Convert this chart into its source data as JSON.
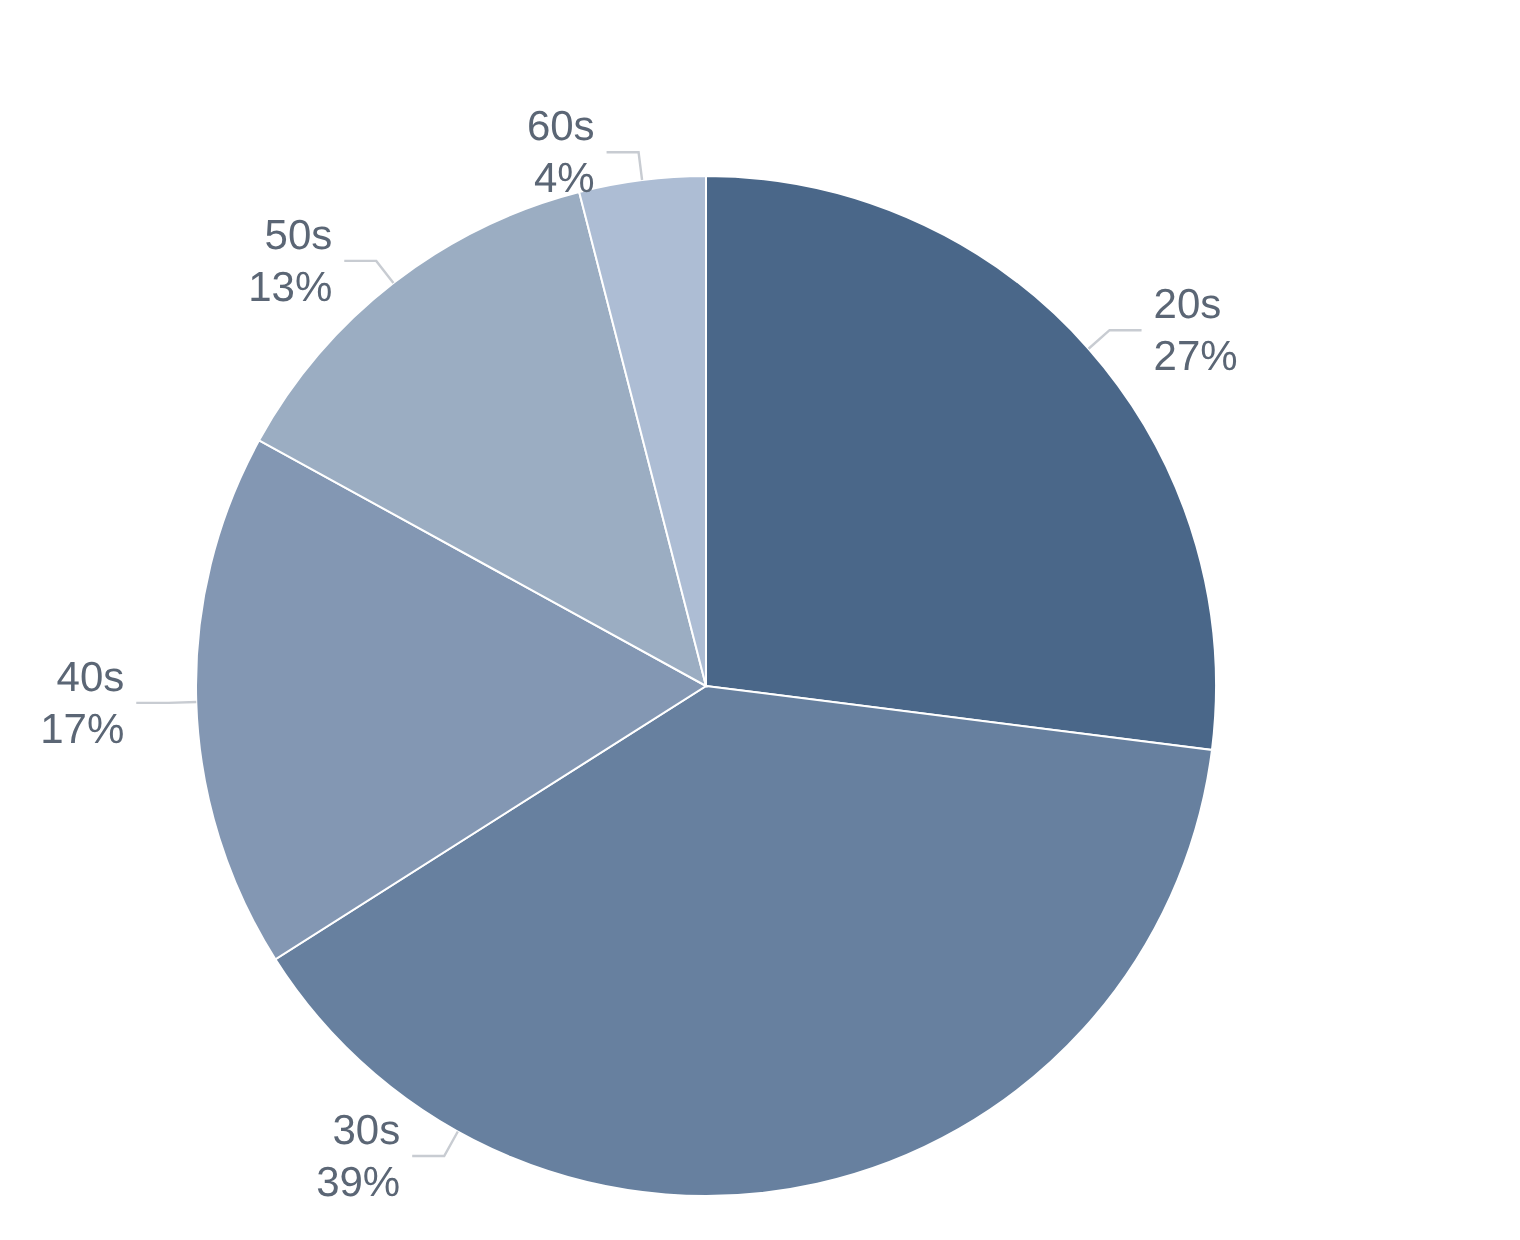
{
  "chart_data": {
    "type": "pie",
    "categories": [
      "20s",
      "30s",
      "40s",
      "50s",
      "60s"
    ],
    "values": [
      27,
      39,
      17,
      13,
      4
    ],
    "colors": [
      "#4a6789",
      "#67809f",
      "#8397b3",
      "#9badc2",
      "#adbdd4"
    ],
    "value_labels": [
      "27%",
      "39%",
      "17%",
      "13%",
      "4%"
    ]
  }
}
